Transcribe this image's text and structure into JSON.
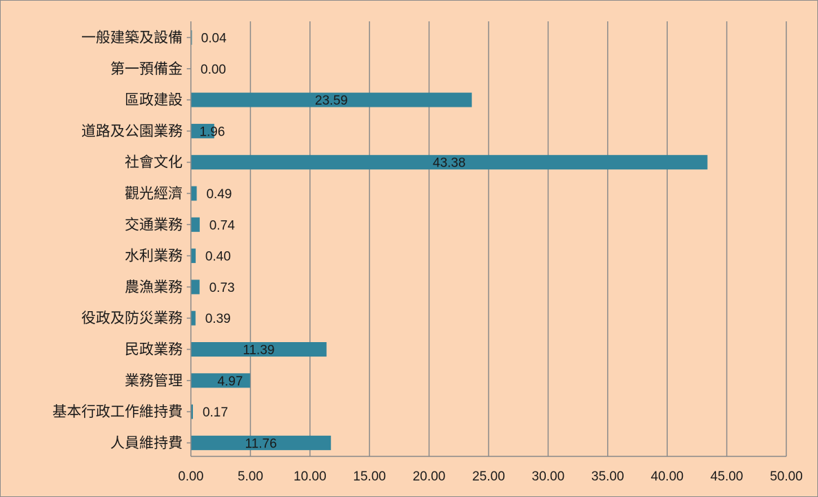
{
  "chart_data": {
    "type": "bar",
    "orientation": "horizontal",
    "categories": [
      "一般建築及設備",
      "第一預備金",
      "區政建設",
      "道路及公園業務",
      "社會文化",
      "觀光經濟",
      "交通業務",
      "水利業務",
      "農漁業務",
      "役政及防災業務",
      "民政業務",
      "業務管理",
      "基本行政工作維持費",
      "人員維持費"
    ],
    "values": [
      0.04,
      0.0,
      23.59,
      1.96,
      43.38,
      0.49,
      0.74,
      0.4,
      0.73,
      0.39,
      11.39,
      4.97,
      0.17,
      11.76
    ],
    "value_labels": [
      "0.04",
      "0.00",
      "23.59",
      "1.96",
      "43.38",
      "0.49",
      "0.74",
      "0.40",
      "0.73",
      "0.39",
      "11.39",
      "4.97",
      "0.17",
      "11.76"
    ],
    "xlim": [
      0,
      50
    ],
    "x_ticks": [
      "0.00",
      "5.00",
      "10.00",
      "15.00",
      "20.00",
      "25.00",
      "30.00",
      "35.00",
      "40.00",
      "45.00",
      "50.00"
    ],
    "grid": "vertical",
    "legend": "none",
    "title": "",
    "xlabel": "",
    "ylabel": "",
    "colors": {
      "bar": "#31849b",
      "background": "#fcd5b5",
      "gridline": "#8a8a8a",
      "axis": "#8a8a8a",
      "text": "#1a1a1a"
    }
  }
}
